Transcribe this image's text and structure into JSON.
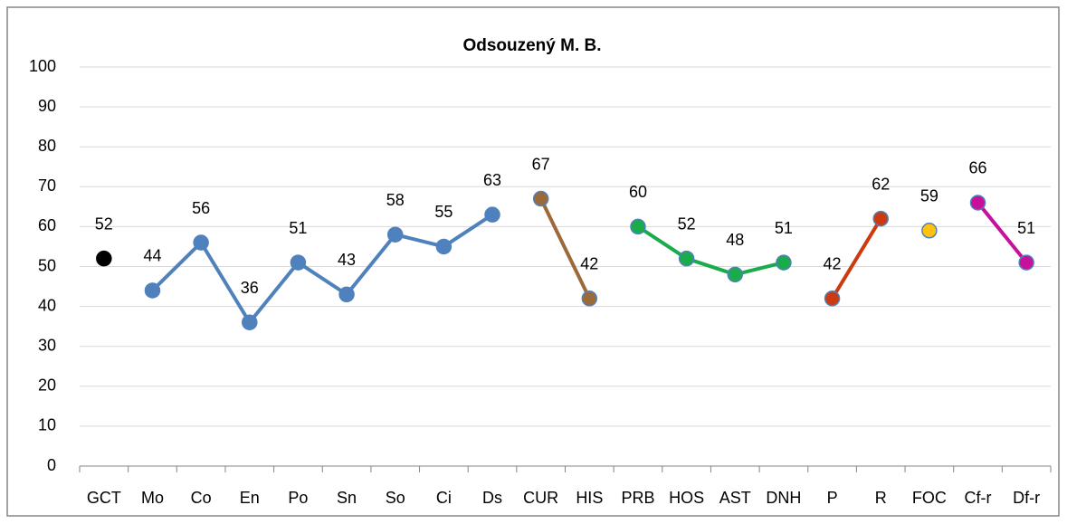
{
  "chart_data": {
    "type": "line",
    "title": "Odsouzený M. B.",
    "categories": [
      "GCT",
      "Mo",
      "Co",
      "En",
      "Po",
      "Sn",
      "So",
      "Ci",
      "Ds",
      "CUR",
      "HIS",
      "PRB",
      "HOS",
      "AST",
      "DNH",
      "P",
      "R",
      "FOC",
      "Cf-r",
      "Df-r"
    ],
    "series": [
      {
        "color": "#000000",
        "values": [
          52,
          null,
          null,
          null,
          null,
          null,
          null,
          null,
          null,
          null,
          null,
          null,
          null,
          null,
          null,
          null,
          null,
          null,
          null,
          null
        ]
      },
      {
        "color": "#4f81bd",
        "values": [
          null,
          44,
          56,
          36,
          51,
          43,
          58,
          55,
          63,
          null,
          null,
          null,
          null,
          null,
          null,
          null,
          null,
          null,
          null,
          null
        ]
      },
      {
        "color": "#9c6a3a",
        "values": [
          null,
          null,
          null,
          null,
          null,
          null,
          null,
          null,
          null,
          67,
          42,
          null,
          null,
          null,
          null,
          null,
          null,
          null,
          null,
          null
        ]
      },
      {
        "color": "#1aab4b",
        "values": [
          null,
          null,
          null,
          null,
          null,
          null,
          null,
          null,
          null,
          null,
          null,
          60,
          52,
          48,
          51,
          null,
          null,
          null,
          null,
          null
        ]
      },
      {
        "color": "#cc3a10",
        "values": [
          null,
          null,
          null,
          null,
          null,
          null,
          null,
          null,
          null,
          null,
          null,
          null,
          null,
          null,
          null,
          42,
          62,
          null,
          null,
          null
        ]
      },
      {
        "color": "#ffc20e",
        "values": [
          null,
          null,
          null,
          null,
          null,
          null,
          null,
          null,
          null,
          null,
          null,
          null,
          null,
          null,
          null,
          null,
          null,
          59,
          null,
          null
        ]
      },
      {
        "color": "#c8119a",
        "values": [
          null,
          null,
          null,
          null,
          null,
          null,
          null,
          null,
          null,
          null,
          null,
          null,
          null,
          null,
          null,
          null,
          null,
          null,
          66,
          51
        ]
      }
    ],
    "ylim": [
      0,
      100
    ],
    "yticks": [
      0,
      10,
      20,
      30,
      40,
      50,
      60,
      70,
      80,
      90,
      100
    ],
    "grid": true
  }
}
